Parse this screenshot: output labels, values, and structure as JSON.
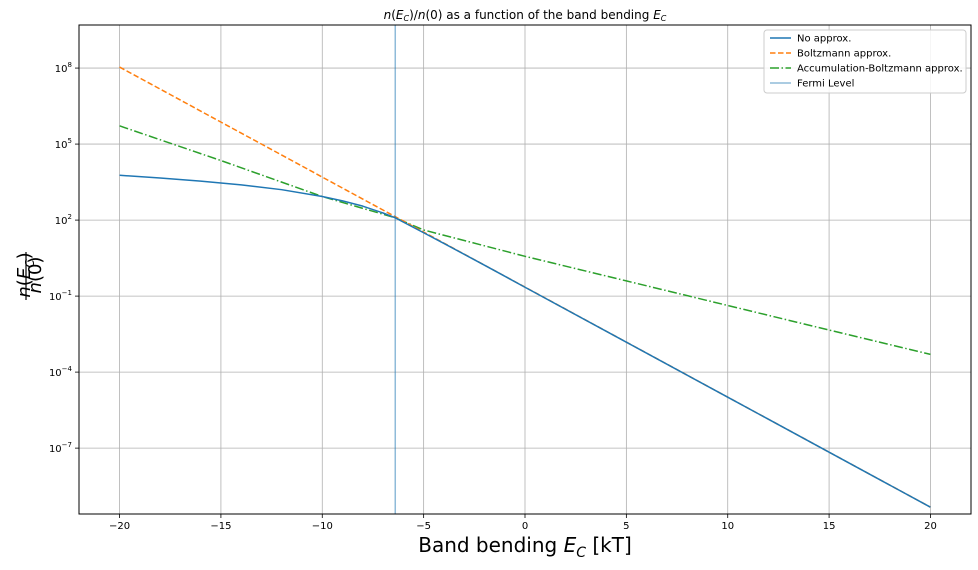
{
  "chart_data": {
    "type": "line",
    "title": "n(E_C)/n(0) as a function of the band bending E_C",
    "xlabel": "Band bending E_C [kT]",
    "ylabel": "n(E_C)/n(0)",
    "xlim": [
      -22,
      22
    ],
    "ylim_log10": [
      -9.6,
      9.7
    ],
    "yscale": "log",
    "grid": true,
    "legend_position": "top-right",
    "x_ticks": [
      -20,
      -15,
      -10,
      -5,
      0,
      5,
      10,
      15,
      20
    ],
    "x_tick_labels": [
      "−20",
      "−15",
      "−10",
      "−5",
      "0",
      "5",
      "10",
      "15",
      "20"
    ],
    "y_tick_exponents": [
      8,
      5,
      2,
      -1,
      -4,
      -7
    ],
    "y_tick_labels": [
      {
        "base": "10",
        "exp": "8"
      },
      {
        "base": "10",
        "exp": "5"
      },
      {
        "base": "10",
        "exp": "2"
      },
      {
        "base": "10",
        "exp": "−1"
      },
      {
        "base": "10",
        "exp": "−4"
      },
      {
        "base": "10",
        "exp": "−7"
      }
    ],
    "fermi_level_x": -6.4,
    "series": [
      {
        "name": "No approx.",
        "color": "#1f77b4",
        "dash": "solid",
        "x": [
          -20,
          -18,
          -16,
          -14,
          -12,
          -10,
          -9,
          -8,
          -7,
          -6.4,
          -6,
          -5,
          -4,
          -2,
          0,
          5,
          10,
          15,
          20
        ],
        "log10_y": [
          3.77,
          3.66,
          3.54,
          3.39,
          3.2,
          2.93,
          2.76,
          2.55,
          2.28,
          2.09,
          1.92,
          1.5,
          1.08,
          0.22,
          -0.65,
          -2.82,
          -4.99,
          -7.16,
          -9.33
        ]
      },
      {
        "name": "Boltzmann approx.",
        "color": "#ff7f0e",
        "dash": "dashed",
        "x": [
          -20,
          20
        ],
        "log10_y": [
          8.04,
          -9.33
        ]
      },
      {
        "name": "Accumulation-Boltzmann approx.",
        "color": "#2ca02c",
        "dash": "dashdot",
        "x": [
          -20,
          -15,
          -10,
          -6.4,
          -5,
          0,
          5,
          10,
          15,
          20
        ],
        "log10_y": [
          5.72,
          4.35,
          2.93,
          2.09,
          1.61,
          0.57,
          -0.4,
          -1.37,
          -2.34,
          -3.3
        ]
      }
    ],
    "legend_fermi": {
      "name": "Fermi Level",
      "color": "#1f77b4"
    }
  }
}
